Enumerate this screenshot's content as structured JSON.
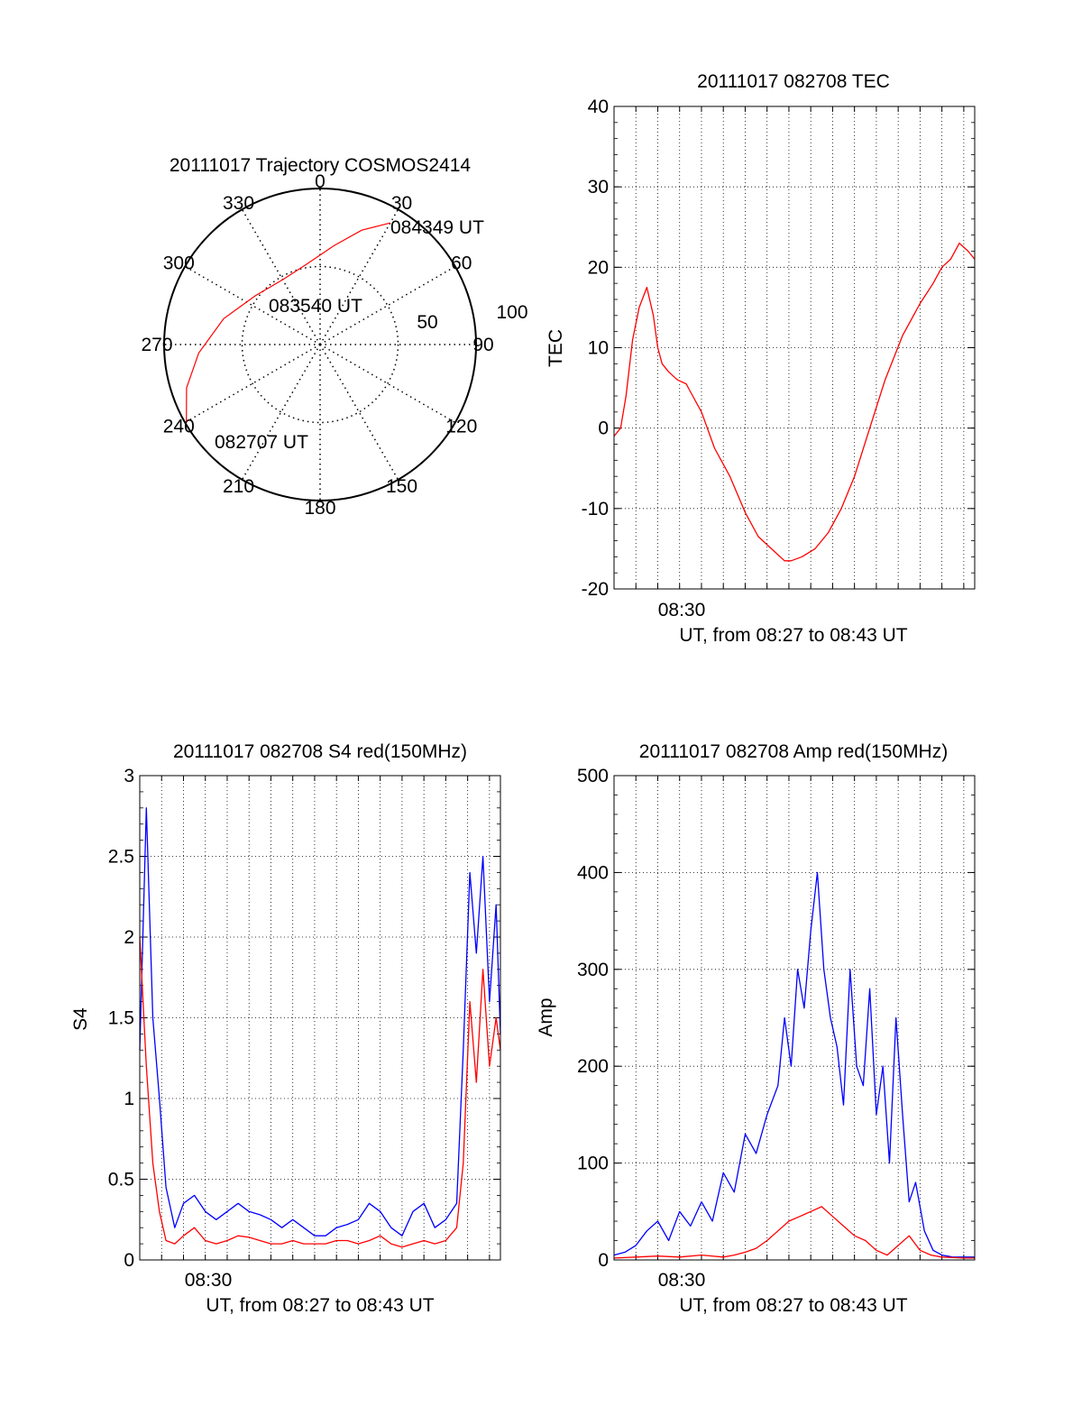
{
  "colors": {
    "red": "#ff0000",
    "blue": "#0000ff",
    "axis": "#000000",
    "grid": "#000000"
  },
  "chart_data": [
    {
      "id": "trajectory",
      "type": "polar",
      "title": "20111017 Trajectory COSMOS2414",
      "azimuth_labels": [
        {
          "deg": 0,
          "text": "0"
        },
        {
          "deg": 30,
          "text": "30"
        },
        {
          "deg": 60,
          "text": "60"
        },
        {
          "deg": 90,
          "text": "90"
        },
        {
          "deg": 120,
          "text": "120"
        },
        {
          "deg": 150,
          "text": "150"
        },
        {
          "deg": 180,
          "text": "180"
        },
        {
          "deg": 210,
          "text": "210"
        },
        {
          "deg": 240,
          "text": "240"
        },
        {
          "deg": 270,
          "text": "270"
        },
        {
          "deg": 300,
          "text": "300"
        },
        {
          "deg": 330,
          "text": "330"
        }
      ],
      "ring_labels": [
        {
          "r": 50,
          "text": "50"
        },
        {
          "r": 100,
          "text": "100"
        }
      ],
      "r_max": 100,
      "track": {
        "color": "red",
        "points": [
          {
            "az": 240,
            "r": 99
          },
          {
            "az": 252,
            "r": 90
          },
          {
            "az": 266,
            "r": 78
          },
          {
            "az": 285,
            "r": 64
          },
          {
            "az": 307,
            "r": 52
          },
          {
            "az": 330,
            "r": 48
          },
          {
            "az": 350,
            "r": 52
          },
          {
            "az": 8,
            "r": 64
          },
          {
            "az": 20,
            "r": 78
          },
          {
            "az": 30,
            "r": 90
          }
        ]
      },
      "annotations": [
        {
          "text": "084349 UT",
          "at": "end"
        },
        {
          "text": "083540 UT",
          "at": "middle"
        },
        {
          "text": "082707 UT",
          "at": "start"
        }
      ]
    },
    {
      "id": "tec",
      "type": "line",
      "title": "20111017 082708 TEC",
      "xlabel": "UT, from 08:27 to 08:43 UT",
      "ylabel": "TEC",
      "xlim_min": [
        0,
        16.5
      ],
      "ylim": [
        -20,
        40
      ],
      "yticks": [
        -20,
        -10,
        0,
        10,
        20,
        30,
        40
      ],
      "xtick_labels": [
        {
          "x_min": 3,
          "text": "08:30"
        }
      ],
      "grid": true,
      "series": [
        {
          "color": "red",
          "x_min": [
            0,
            0.3,
            0.55,
            0.85,
            1.15,
            1.5,
            1.8,
            2.0,
            2.2,
            2.5,
            2.9,
            3.3,
            3.7,
            4.0,
            4.6,
            5.3,
            6.0,
            6.6,
            7.2,
            7.8,
            8.1,
            8.6,
            9.2,
            9.8,
            10.4,
            11.0,
            11.7,
            12.4,
            13.2,
            14.0,
            14.6,
            15.0,
            15.4,
            15.8,
            16.2,
            16.5
          ],
          "y": [
            -1,
            0,
            4,
            11,
            15,
            17.5,
            14,
            10,
            8,
            7,
            6,
            5.5,
            3.5,
            2,
            -2.5,
            -6,
            -10.5,
            -13.5,
            -15,
            -16.5,
            -16.5,
            -16,
            -15,
            -13,
            -10,
            -6,
            0,
            6,
            11.5,
            15.5,
            18,
            20,
            21,
            23,
            22,
            21
          ]
        }
      ]
    },
    {
      "id": "s4",
      "type": "line",
      "title": "20111017 082708 S4 red(150MHz)",
      "xlabel": "UT, from 08:27 to 08:43 UT",
      "ylabel": "S4",
      "xlim_min": [
        0,
        16.5
      ],
      "ylim": [
        0,
        3
      ],
      "yticks": [
        0,
        0.5,
        1,
        1.5,
        2,
        2.5,
        3
      ],
      "ytick_labels": [
        "0",
        "0.5",
        "1",
        "1.5",
        "2",
        "2.5",
        "3"
      ],
      "xtick_labels": [
        {
          "x_min": 3,
          "text": "08:30"
        }
      ],
      "grid": true,
      "series": [
        {
          "color": "blue",
          "x_min": [
            0,
            0.3,
            0.6,
            0.9,
            1.2,
            1.6,
            2.0,
            2.5,
            3.0,
            3.5,
            4.0,
            4.5,
            5.0,
            5.5,
            6.0,
            6.5,
            7.0,
            7.5,
            8.0,
            8.5,
            9.0,
            9.5,
            10.0,
            10.5,
            11.0,
            11.5,
            12.0,
            12.5,
            13.0,
            13.5,
            14.0,
            14.5,
            14.8,
            15.1,
            15.4,
            15.7,
            16.0,
            16.3,
            16.5
          ],
          "y": [
            1.3,
            2.8,
            1.5,
            1.0,
            0.45,
            0.2,
            0.35,
            0.4,
            0.3,
            0.25,
            0.3,
            0.35,
            0.3,
            0.28,
            0.25,
            0.2,
            0.25,
            0.2,
            0.15,
            0.15,
            0.2,
            0.22,
            0.25,
            0.35,
            0.3,
            0.2,
            0.15,
            0.3,
            0.35,
            0.2,
            0.25,
            0.35,
            1.3,
            2.4,
            1.9,
            2.5,
            1.6,
            2.2,
            1.4
          ]
        },
        {
          "color": "red",
          "x_min": [
            0,
            0.3,
            0.6,
            0.9,
            1.2,
            1.6,
            2.0,
            2.5,
            3.0,
            3.5,
            4.0,
            4.5,
            5.0,
            5.5,
            6.0,
            6.5,
            7.0,
            7.5,
            8.0,
            8.5,
            9.0,
            9.5,
            10.0,
            10.5,
            11.0,
            11.5,
            12.0,
            12.5,
            13.0,
            13.5,
            14.0,
            14.5,
            14.8,
            15.1,
            15.4,
            15.7,
            16.0,
            16.3,
            16.5
          ],
          "y": [
            2.0,
            1.2,
            0.6,
            0.3,
            0.12,
            0.1,
            0.15,
            0.2,
            0.12,
            0.1,
            0.12,
            0.15,
            0.14,
            0.12,
            0.1,
            0.1,
            0.12,
            0.1,
            0.1,
            0.1,
            0.12,
            0.12,
            0.1,
            0.12,
            0.15,
            0.1,
            0.08,
            0.1,
            0.12,
            0.1,
            0.12,
            0.2,
            0.6,
            1.6,
            1.1,
            1.8,
            1.2,
            1.5,
            1.3
          ]
        }
      ]
    },
    {
      "id": "amp",
      "type": "line",
      "title": "20111017 082708 Amp red(150MHz)",
      "xlabel": "UT, from 08:27 to 08:43 UT",
      "ylabel": "Amp",
      "xlim_min": [
        0,
        16.5
      ],
      "ylim": [
        0,
        500
      ],
      "yticks": [
        0,
        100,
        200,
        300,
        400,
        500
      ],
      "xtick_labels": [
        {
          "x_min": 3,
          "text": "08:30"
        }
      ],
      "grid": true,
      "series": [
        {
          "color": "blue",
          "x_min": [
            0,
            0.5,
            1.0,
            1.5,
            2.0,
            2.5,
            3.0,
            3.5,
            4.0,
            4.5,
            5.0,
            5.5,
            6.0,
            6.5,
            7.0,
            7.5,
            7.8,
            8.1,
            8.4,
            8.7,
            9.0,
            9.3,
            9.6,
            9.9,
            10.2,
            10.5,
            10.8,
            11.1,
            11.4,
            11.7,
            12.0,
            12.3,
            12.6,
            12.9,
            13.2,
            13.5,
            13.8,
            14.2,
            14.6,
            15.0,
            15.5,
            16.0,
            16.5
          ],
          "y": [
            5,
            8,
            15,
            30,
            40,
            20,
            50,
            35,
            60,
            40,
            90,
            70,
            130,
            110,
            150,
            180,
            250,
            200,
            300,
            260,
            340,
            400,
            300,
            250,
            220,
            160,
            300,
            200,
            180,
            280,
            150,
            200,
            100,
            250,
            150,
            60,
            80,
            30,
            10,
            5,
            3,
            3,
            3
          ]
        },
        {
          "color": "red",
          "x_min": [
            0,
            1.0,
            2.0,
            3.0,
            4.0,
            5.0,
            5.5,
            6.0,
            6.5,
            7.0,
            7.5,
            8.0,
            8.5,
            9.0,
            9.5,
            10.0,
            10.5,
            11.0,
            11.5,
            12.0,
            12.5,
            13.0,
            13.5,
            14.0,
            14.5,
            15.0,
            16.0,
            16.5
          ],
          "y": [
            2,
            3,
            4,
            3,
            5,
            3,
            5,
            8,
            12,
            20,
            30,
            40,
            45,
            50,
            55,
            45,
            35,
            25,
            20,
            10,
            5,
            15,
            25,
            10,
            5,
            3,
            2,
            2
          ]
        }
      ]
    }
  ]
}
